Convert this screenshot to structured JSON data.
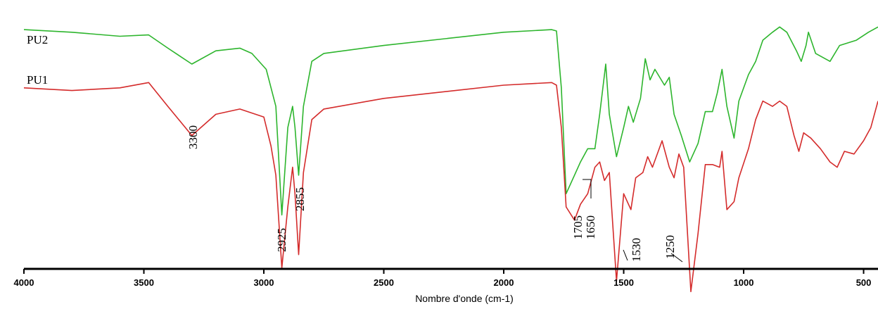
{
  "chart_data": {
    "type": "line",
    "title": "",
    "xlabel": "Nombre d'onde (cm-1)",
    "ylabel": "",
    "xlim": [
      4000,
      440
    ],
    "x_reversed": true,
    "ylim": [
      0,
      100
    ],
    "y_unit": "relative transmittance (arbitrary)",
    "grid": false,
    "xticks": [
      {
        "value": 4000,
        "label": "4000"
      },
      {
        "value": 3500,
        "label": "3500"
      },
      {
        "value": 3000,
        "label": "3000"
      },
      {
        "value": 2500,
        "label": "2500"
      },
      {
        "value": 2000,
        "label": "2000"
      },
      {
        "value": 1500,
        "label": "1500"
      },
      {
        "value": 1000,
        "label": "1000"
      },
      {
        "value": 500,
        "label": "500"
      }
    ],
    "series": [
      {
        "name": "PU2",
        "color": "#2db52d",
        "points": [
          [
            4000,
            92
          ],
          [
            3800,
            91
          ],
          [
            3600,
            89.5
          ],
          [
            3480,
            90
          ],
          [
            3400,
            85
          ],
          [
            3300,
            79
          ],
          [
            3200,
            84
          ],
          [
            3100,
            85
          ],
          [
            3050,
            83
          ],
          [
            2990,
            77
          ],
          [
            2950,
            63
          ],
          [
            2925,
            22
          ],
          [
            2900,
            55
          ],
          [
            2880,
            63
          ],
          [
            2870,
            55
          ],
          [
            2855,
            37
          ],
          [
            2835,
            63
          ],
          [
            2800,
            80
          ],
          [
            2750,
            83
          ],
          [
            2500,
            86
          ],
          [
            2000,
            91
          ],
          [
            1800,
            92
          ],
          [
            1780,
            91.5
          ],
          [
            1760,
            70
          ],
          [
            1740,
            30
          ],
          [
            1705,
            37
          ],
          [
            1680,
            42
          ],
          [
            1650,
            47
          ],
          [
            1620,
            47
          ],
          [
            1600,
            60
          ],
          [
            1575,
            79
          ],
          [
            1560,
            60
          ],
          [
            1530,
            44
          ],
          [
            1500,
            55
          ],
          [
            1480,
            63
          ],
          [
            1460,
            57
          ],
          [
            1430,
            66
          ],
          [
            1410,
            81
          ],
          [
            1390,
            73
          ],
          [
            1370,
            77
          ],
          [
            1330,
            71
          ],
          [
            1310,
            74
          ],
          [
            1290,
            60
          ],
          [
            1260,
            52
          ],
          [
            1225,
            42
          ],
          [
            1190,
            49
          ],
          [
            1160,
            61
          ],
          [
            1130,
            61
          ],
          [
            1110,
            68
          ],
          [
            1090,
            77
          ],
          [
            1070,
            63
          ],
          [
            1040,
            51
          ],
          [
            1020,
            65
          ],
          [
            980,
            75
          ],
          [
            950,
            80
          ],
          [
            920,
            88
          ],
          [
            880,
            91
          ],
          [
            850,
            93
          ],
          [
            820,
            91
          ],
          [
            780,
            84
          ],
          [
            760,
            80
          ],
          [
            740,
            86
          ],
          [
            730,
            91
          ],
          [
            700,
            83
          ],
          [
            640,
            80
          ],
          [
            600,
            86
          ],
          [
            530,
            88
          ],
          [
            480,
            91
          ],
          [
            440,
            93
          ]
        ]
      },
      {
        "name": "PU1",
        "color": "#d42b2b",
        "points": [
          [
            4000,
            70
          ],
          [
            3800,
            69
          ],
          [
            3600,
            70
          ],
          [
            3480,
            72
          ],
          [
            3400,
            63
          ],
          [
            3300,
            52
          ],
          [
            3200,
            60
          ],
          [
            3100,
            62
          ],
          [
            3000,
            59
          ],
          [
            2970,
            48
          ],
          [
            2950,
            37
          ],
          [
            2925,
            2
          ],
          [
            2900,
            25
          ],
          [
            2880,
            40
          ],
          [
            2870,
            30
          ],
          [
            2855,
            7
          ],
          [
            2835,
            38
          ],
          [
            2800,
            58
          ],
          [
            2750,
            62
          ],
          [
            2500,
            66
          ],
          [
            2000,
            71
          ],
          [
            1800,
            72
          ],
          [
            1780,
            71
          ],
          [
            1760,
            55
          ],
          [
            1740,
            25
          ],
          [
            1705,
            20
          ],
          [
            1680,
            26
          ],
          [
            1650,
            30
          ],
          [
            1620,
            40
          ],
          [
            1600,
            42
          ],
          [
            1580,
            35
          ],
          [
            1560,
            38
          ],
          [
            1530,
            -3
          ],
          [
            1500,
            30
          ],
          [
            1470,
            24
          ],
          [
            1450,
            36
          ],
          [
            1420,
            38
          ],
          [
            1400,
            44
          ],
          [
            1380,
            40
          ],
          [
            1340,
            50
          ],
          [
            1310,
            40
          ],
          [
            1290,
            36
          ],
          [
            1270,
            45
          ],
          [
            1250,
            40
          ],
          [
            1220,
            -7
          ],
          [
            1190,
            15
          ],
          [
            1160,
            41
          ],
          [
            1130,
            41
          ],
          [
            1100,
            40
          ],
          [
            1090,
            46
          ],
          [
            1070,
            24
          ],
          [
            1040,
            27
          ],
          [
            1020,
            36
          ],
          [
            980,
            47
          ],
          [
            950,
            58
          ],
          [
            920,
            65
          ],
          [
            880,
            63
          ],
          [
            850,
            65
          ],
          [
            820,
            63
          ],
          [
            790,
            52
          ],
          [
            770,
            46
          ],
          [
            750,
            53
          ],
          [
            720,
            51
          ],
          [
            680,
            47
          ],
          [
            640,
            42
          ],
          [
            610,
            40
          ],
          [
            580,
            46
          ],
          [
            540,
            45
          ],
          [
            500,
            50
          ],
          [
            470,
            55
          ],
          [
            440,
            65
          ]
        ]
      }
    ],
    "series_labels": [
      {
        "text": "PU2",
        "series": "PU2"
      },
      {
        "text": "PU1",
        "series": "PU1"
      }
    ],
    "annotations": [
      {
        "text": "3300",
        "x": 3300
      },
      {
        "text": "2925",
        "x": 2925
      },
      {
        "text": "2855",
        "x": 2855
      },
      {
        "text": "1705",
        "x": 1705
      },
      {
        "text": "1650",
        "x": 1650
      },
      {
        "text": "1530",
        "x": 1530
      },
      {
        "text": "1250",
        "x": 1250
      }
    ]
  }
}
